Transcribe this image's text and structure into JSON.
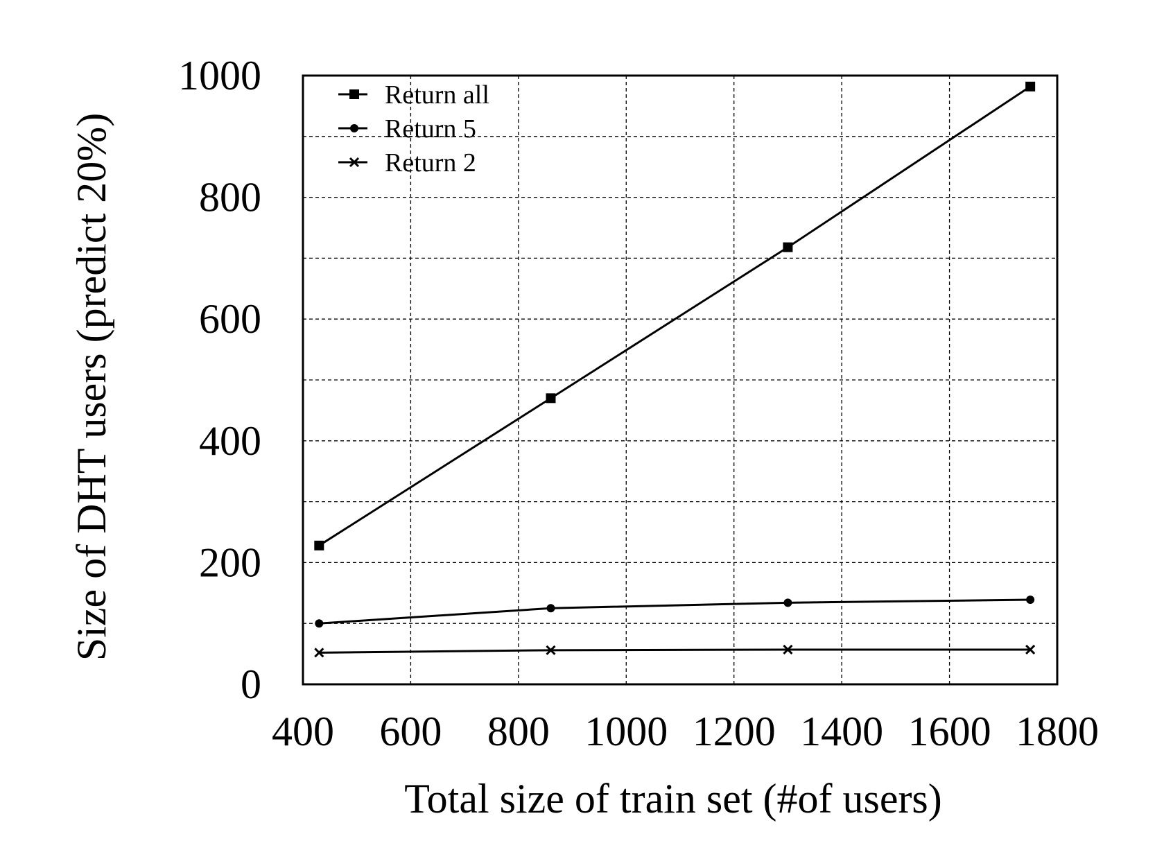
{
  "chart_data": {
    "type": "line",
    "title": "",
    "xlabel": "Total size of train set (#of users)",
    "ylabel": "Size of DHT users (predict 20%)",
    "xlim": [
      400,
      1800
    ],
    "ylim": [
      0,
      1000
    ],
    "x_ticks": [
      400,
      600,
      800,
      1000,
      1200,
      1400,
      1600,
      1800
    ],
    "y_ticks": [
      0,
      200,
      400,
      600,
      800,
      1000
    ],
    "x_grid": [
      400,
      600,
      800,
      1000,
      1200,
      1400,
      1600,
      1800
    ],
    "y_grid": [
      0,
      100,
      200,
      300,
      400,
      500,
      600,
      700,
      800,
      900,
      1000
    ],
    "grid": true,
    "legend_position": "top-left",
    "x": [
      430,
      860,
      1300,
      1750
    ],
    "series": [
      {
        "name": "Return all",
        "marker": "square",
        "values": [
          228,
          470,
          718,
          982
        ]
      },
      {
        "name": "Return 5",
        "marker": "circle",
        "values": [
          100,
          125,
          134,
          139
        ]
      },
      {
        "name": "Return 2",
        "marker": "x",
        "values": [
          52,
          56,
          57,
          57
        ]
      }
    ]
  }
}
